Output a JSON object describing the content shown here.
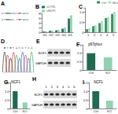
{
  "chart_data": [
    {
      "type": "bar",
      "title": "B",
      "categories": [
        "G1",
        "G2",
        "G3",
        "G4",
        "G5"
      ],
      "series": [
        {
          "name": "siCTRL",
          "color": "#1f6b4f",
          "values": [
            0.3,
            0.6,
            0.8,
            1.5,
            5.8
          ]
        },
        {
          "name": "siNCF1",
          "color": "#8fd3b0",
          "values": [
            0.4,
            0.7,
            1.0,
            2.0,
            7.2
          ]
        }
      ],
      "ylim": [
        0,
        8
      ],
      "yticks": [
        0,
        2,
        4,
        6,
        8
      ],
      "legend": "top-left",
      "grid": false
    },
    {
      "type": "bar",
      "title": "C",
      "categories": [
        "1",
        "2",
        "3",
        "4",
        "5"
      ],
      "series": [
        {
          "name": "Ctrl",
          "color": "#2e8b57",
          "values": [
            0.15,
            0.3,
            0.45,
            0.7,
            0.9
          ]
        },
        {
          "name": "Mut",
          "color": "#a8e0c0",
          "values": [
            0.2,
            0.35,
            0.55,
            0.75,
            1.0
          ]
        }
      ],
      "ylim": [
        0,
        1.2
      ],
      "yticks": [
        0,
        0.5,
        {
          "value": 1,
          "label": "1.0"
        }
      ],
      "legend": "top-right",
      "grid": false
    },
    {
      "type": "bar",
      "title": "F",
      "subtitle": "p67phox",
      "categories": [
        "Ctrl",
        "KO"
      ],
      "values": [
        1.0,
        0.75
      ],
      "colors": [
        "#1f6b4f",
        "#8fd3b0"
      ],
      "ylim": [
        0,
        1.5
      ],
      "yticks": [
        0,
        0.5,
        {
          "value": 1,
          "label": "1.0"
        },
        1.5
      ],
      "grid": false
    },
    {
      "type": "bar",
      "title": "G",
      "subtitle": "NCF1",
      "categories": [
        "Ctrl",
        "KO"
      ],
      "values": [
        1.0,
        0.35
      ],
      "colors": [
        "#1f6b4f",
        "#8fd3b0"
      ],
      "ylim": [
        0,
        1.5
      ],
      "yticks": [
        0,
        0.5,
        {
          "value": 1,
          "label": "1.0"
        },
        1.5
      ],
      "grid": false
    },
    {
      "type": "bar",
      "title": "I",
      "subtitle": "NCF1",
      "categories": [
        "Ctrl",
        "KO"
      ],
      "values": [
        1.0,
        0.45
      ],
      "colors": [
        "#1f6b4f",
        "#8fd3b0"
      ],
      "ylim": [
        0,
        1.5
      ],
      "yticks": [
        0,
        0.5,
        {
          "value": 1,
          "label": "1.0"
        },
        1.5
      ],
      "grid": false
    }
  ],
  "panels": [
    {
      "label": "A",
      "type": "alignment",
      "rows": [
        "CTGGACCTGTACC",
        "CTGGAC-TGTACC"
      ]
    },
    {
      "label": "D",
      "type": "chromatogram",
      "sequence": "GTGTACCTCA"
    },
    {
      "label": "E",
      "type": "blot",
      "bands": [
        "NCF1",
        "GAPDH"
      ]
    },
    {
      "label": "H",
      "type": "blot",
      "bands": [
        "NCF1",
        "GAPDH"
      ],
      "lanes": [
        "1",
        "2",
        "3",
        "4",
        "5",
        "6"
      ]
    }
  ]
}
